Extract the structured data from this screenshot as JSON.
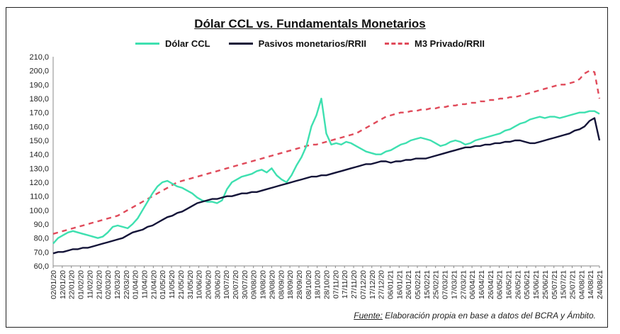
{
  "chart_data": {
    "type": "line",
    "title": "Dólar CCL vs. Fundamentals Monetarios",
    "xlabel": "",
    "ylabel": "",
    "ylim": [
      60,
      210
    ],
    "yticks": [
      "60,0",
      "70,0",
      "80,0",
      "90,0",
      "100,0",
      "110,0",
      "120,0",
      "130,0",
      "140,0",
      "150,0",
      "160,0",
      "170,0",
      "180,0",
      "190,0",
      "200,0",
      "210,0"
    ],
    "xticks": [
      "02/01/20",
      "12/01/20",
      "22/01/20",
      "01/02/20",
      "11/02/20",
      "21/02/20",
      "02/03/20",
      "12/03/20",
      "22/03/20",
      "01/04/20",
      "11/04/20",
      "21/04/20",
      "01/05/20",
      "11/05/20",
      "21/05/20",
      "31/05/20",
      "10/06/20",
      "20/06/20",
      "30/06/20",
      "10/07/20",
      "20/07/20",
      "30/07/20",
      "09/08/20",
      "19/08/20",
      "29/08/20",
      "08/09/20",
      "18/09/20",
      "28/09/20",
      "08/10/20",
      "18/10/20",
      "28/10/20",
      "07/11/20",
      "17/11/20",
      "27/11/20",
      "07/12/20",
      "17/12/20",
      "27/12/20",
      "06/01/21",
      "16/01/21",
      "26/01/21",
      "05/02/21",
      "15/02/21",
      "25/02/21",
      "07/03/21",
      "17/03/21",
      "27/03/21",
      "06/04/21",
      "16/04/21",
      "26/04/21",
      "06/05/21",
      "16/05/21",
      "26/05/21",
      "05/06/21",
      "15/06/21",
      "25/06/21",
      "05/07/21",
      "15/07/21",
      "25/07/21",
      "04/08/21",
      "14/08/21",
      "24/08/21"
    ],
    "grid": false,
    "legend_position": "top",
    "series": [
      {
        "name": "Dólar CCL",
        "color": "#3ee0b0",
        "style": "solid",
        "values": [
          76,
          80,
          82,
          84,
          85,
          84,
          83,
          82,
          81,
          80,
          81,
          84,
          88,
          89,
          88,
          87,
          90,
          94,
          100,
          106,
          112,
          117,
          120,
          121,
          119,
          117,
          116,
          114,
          112,
          109,
          107,
          106,
          106,
          105,
          107,
          115,
          120,
          122,
          124,
          125,
          126,
          128,
          129,
          127,
          130,
          125,
          122,
          120,
          125,
          132,
          138,
          146,
          160,
          168,
          180,
          155,
          147,
          148,
          147,
          149,
          148,
          146,
          144,
          142,
          141,
          140,
          140,
          142,
          143,
          145,
          147,
          148,
          150,
          151,
          152,
          151,
          150,
          148,
          146,
          147,
          149,
          150,
          149,
          147,
          148,
          150,
          151,
          152,
          153,
          154,
          155,
          157,
          158,
          160,
          162,
          163,
          165,
          166,
          167,
          166,
          167,
          167,
          166,
          167,
          168,
          169,
          170,
          170,
          171,
          171,
          169
        ]
      },
      {
        "name": "Pasivos monetarios/RRII",
        "color": "#141438",
        "style": "solid",
        "values": [
          69,
          70,
          70,
          71,
          72,
          72,
          73,
          73,
          74,
          75,
          76,
          77,
          78,
          79,
          80,
          82,
          84,
          85,
          86,
          88,
          89,
          91,
          93,
          95,
          96,
          98,
          99,
          101,
          103,
          105,
          106,
          107,
          108,
          108,
          109,
          110,
          110,
          111,
          112,
          112,
          113,
          113,
          114,
          115,
          116,
          117,
          118,
          119,
          120,
          121,
          122,
          123,
          124,
          124,
          125,
          125,
          126,
          127,
          128,
          129,
          130,
          131,
          132,
          133,
          133,
          134,
          135,
          135,
          134,
          135,
          135,
          136,
          136,
          137,
          137,
          137,
          138,
          139,
          140,
          141,
          142,
          143,
          144,
          145,
          145,
          146,
          146,
          147,
          147,
          148,
          148,
          149,
          149,
          150,
          150,
          149,
          148,
          148,
          149,
          150,
          151,
          152,
          153,
          154,
          155,
          157,
          158,
          160,
          164,
          166,
          150
        ]
      },
      {
        "name": "M3 Privado/RRII",
        "color": "#e04a5a",
        "style": "dashed",
        "values": [
          83,
          84,
          85,
          86,
          87,
          88,
          89,
          90,
          91,
          92,
          93,
          94,
          95,
          96,
          98,
          100,
          102,
          104,
          106,
          108,
          110,
          112,
          114,
          116,
          118,
          120,
          121,
          122,
          123,
          124,
          125,
          126,
          127,
          128,
          129,
          130,
          131,
          132,
          133,
          134,
          135,
          136,
          137,
          138,
          139,
          140,
          141,
          142,
          143,
          144,
          145,
          146,
          147,
          147,
          148,
          149,
          150,
          151,
          152,
          153,
          154,
          155,
          157,
          159,
          161,
          163,
          165,
          167,
          168,
          169,
          170,
          170,
          171,
          171,
          172,
          172,
          173,
          173,
          174,
          174,
          175,
          175,
          176,
          176,
          177,
          177,
          178,
          178,
          179,
          179,
          180,
          180,
          181,
          181,
          182,
          183,
          184,
          185,
          186,
          187,
          188,
          189,
          190,
          190,
          191,
          192,
          194,
          198,
          200,
          199,
          180
        ]
      }
    ]
  },
  "source": {
    "label": "Fuente:",
    "text": " Elaboración propia en base a datos del BCRA y Ámbito."
  }
}
